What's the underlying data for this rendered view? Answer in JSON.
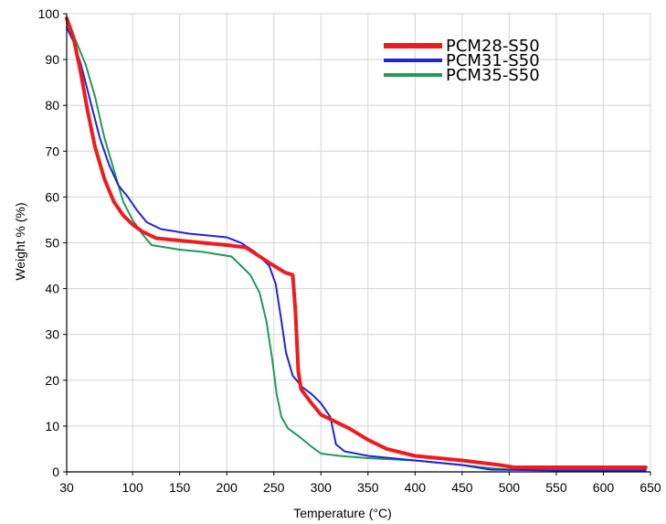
{
  "chart_data": {
    "type": "line",
    "title": "",
    "xlabel": "Temperature (°C)",
    "ylabel": "Weight % (%)",
    "xlim": [
      30,
      650
    ],
    "ylim": [
      0,
      100
    ],
    "x_ticks": [
      30,
      100,
      150,
      200,
      250,
      300,
      350,
      400,
      450,
      500,
      550,
      600,
      650
    ],
    "y_ticks": [
      0,
      10,
      20,
      30,
      40,
      50,
      60,
      70,
      80,
      90,
      100
    ],
    "grid": true,
    "legend_position": "top-right",
    "series": [
      {
        "name": "PCM28-S50",
        "color": "#ee1c1c",
        "points": [
          [
            30,
            99
          ],
          [
            37,
            95
          ],
          [
            45,
            87
          ],
          [
            52,
            79
          ],
          [
            60,
            71
          ],
          [
            70,
            64
          ],
          [
            80,
            59
          ],
          [
            90,
            56
          ],
          [
            100,
            54
          ],
          [
            110,
            52.5
          ],
          [
            125,
            51
          ],
          [
            150,
            50.5
          ],
          [
            175,
            50
          ],
          [
            200,
            49.5
          ],
          [
            220,
            49
          ],
          [
            235,
            47
          ],
          [
            250,
            45
          ],
          [
            262,
            43.5
          ],
          [
            270,
            43
          ],
          [
            273,
            35
          ],
          [
            276,
            22
          ],
          [
            279,
            18
          ],
          [
            290,
            15
          ],
          [
            300,
            12.5
          ],
          [
            310,
            11.5
          ],
          [
            330,
            9.5
          ],
          [
            350,
            7
          ],
          [
            370,
            5
          ],
          [
            400,
            3.5
          ],
          [
            450,
            2.5
          ],
          [
            490,
            1.5
          ],
          [
            505,
            1
          ],
          [
            550,
            1
          ],
          [
            600,
            1
          ],
          [
            645,
            1
          ]
        ]
      },
      {
        "name": "PCM31-S50",
        "color": "#2222dd",
        "points": [
          [
            30,
            97
          ],
          [
            37,
            94
          ],
          [
            45,
            89
          ],
          [
            55,
            81
          ],
          [
            65,
            73
          ],
          [
            75,
            67
          ],
          [
            85,
            62.5
          ],
          [
            95,
            60
          ],
          [
            105,
            57
          ],
          [
            115,
            54.5
          ],
          [
            130,
            53
          ],
          [
            160,
            52
          ],
          [
            200,
            51.2
          ],
          [
            215,
            50
          ],
          [
            230,
            48
          ],
          [
            245,
            45
          ],
          [
            252,
            41
          ],
          [
            258,
            33
          ],
          [
            263,
            26
          ],
          [
            270,
            21
          ],
          [
            280,
            18.5
          ],
          [
            290,
            17
          ],
          [
            300,
            15
          ],
          [
            310,
            12
          ],
          [
            316,
            6
          ],
          [
            325,
            4.5
          ],
          [
            350,
            3.5
          ],
          [
            400,
            2.5
          ],
          [
            450,
            1.5
          ],
          [
            480,
            0.5
          ],
          [
            550,
            0.3
          ],
          [
            600,
            0.3
          ],
          [
            645,
            0.3
          ]
        ]
      },
      {
        "name": "PCM35-S50",
        "color": "#1f9a57",
        "points": [
          [
            30,
            98
          ],
          [
            40,
            94
          ],
          [
            50,
            89
          ],
          [
            60,
            82
          ],
          [
            70,
            73
          ],
          [
            80,
            66
          ],
          [
            90,
            59
          ],
          [
            100,
            55
          ],
          [
            110,
            52
          ],
          [
            120,
            49.5
          ],
          [
            150,
            48.5
          ],
          [
            175,
            48
          ],
          [
            205,
            47
          ],
          [
            215,
            45
          ],
          [
            225,
            43
          ],
          [
            235,
            39
          ],
          [
            242,
            33
          ],
          [
            248,
            25
          ],
          [
            253,
            17
          ],
          [
            258,
            12
          ],
          [
            265,
            9.5
          ],
          [
            275,
            8
          ],
          [
            290,
            5.5
          ],
          [
            300,
            4
          ],
          [
            320,
            3.5
          ],
          [
            350,
            3
          ],
          [
            400,
            2.5
          ],
          [
            450,
            1.5
          ],
          [
            480,
            0.8
          ],
          [
            500,
            0.5
          ],
          [
            550,
            0.5
          ],
          [
            600,
            0.5
          ],
          [
            645,
            0.5
          ]
        ]
      }
    ]
  }
}
